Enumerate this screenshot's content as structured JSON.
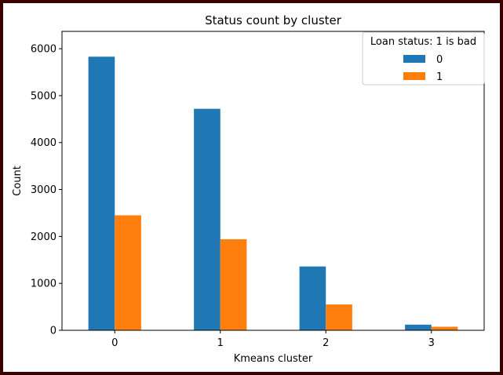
{
  "chart_data": {
    "type": "bar",
    "title": "Status count by cluster",
    "xlabel": "Kmeans cluster",
    "ylabel": "Count",
    "categories": [
      "0",
      "1",
      "2",
      "3"
    ],
    "series": [
      {
        "name": "0",
        "values": [
          5830,
          4720,
          1360,
          120
        ],
        "color": "#1f77b4"
      },
      {
        "name": "1",
        "values": [
          2450,
          1940,
          550,
          75
        ],
        "color": "#ff7f0e"
      }
    ],
    "ylim": [
      0,
      6000
    ],
    "yticks": [
      0,
      1000,
      2000,
      3000,
      4000,
      5000,
      6000
    ],
    "grid": false,
    "legend": {
      "title": "Loan status: 1 is bad",
      "position": "top-right"
    }
  }
}
